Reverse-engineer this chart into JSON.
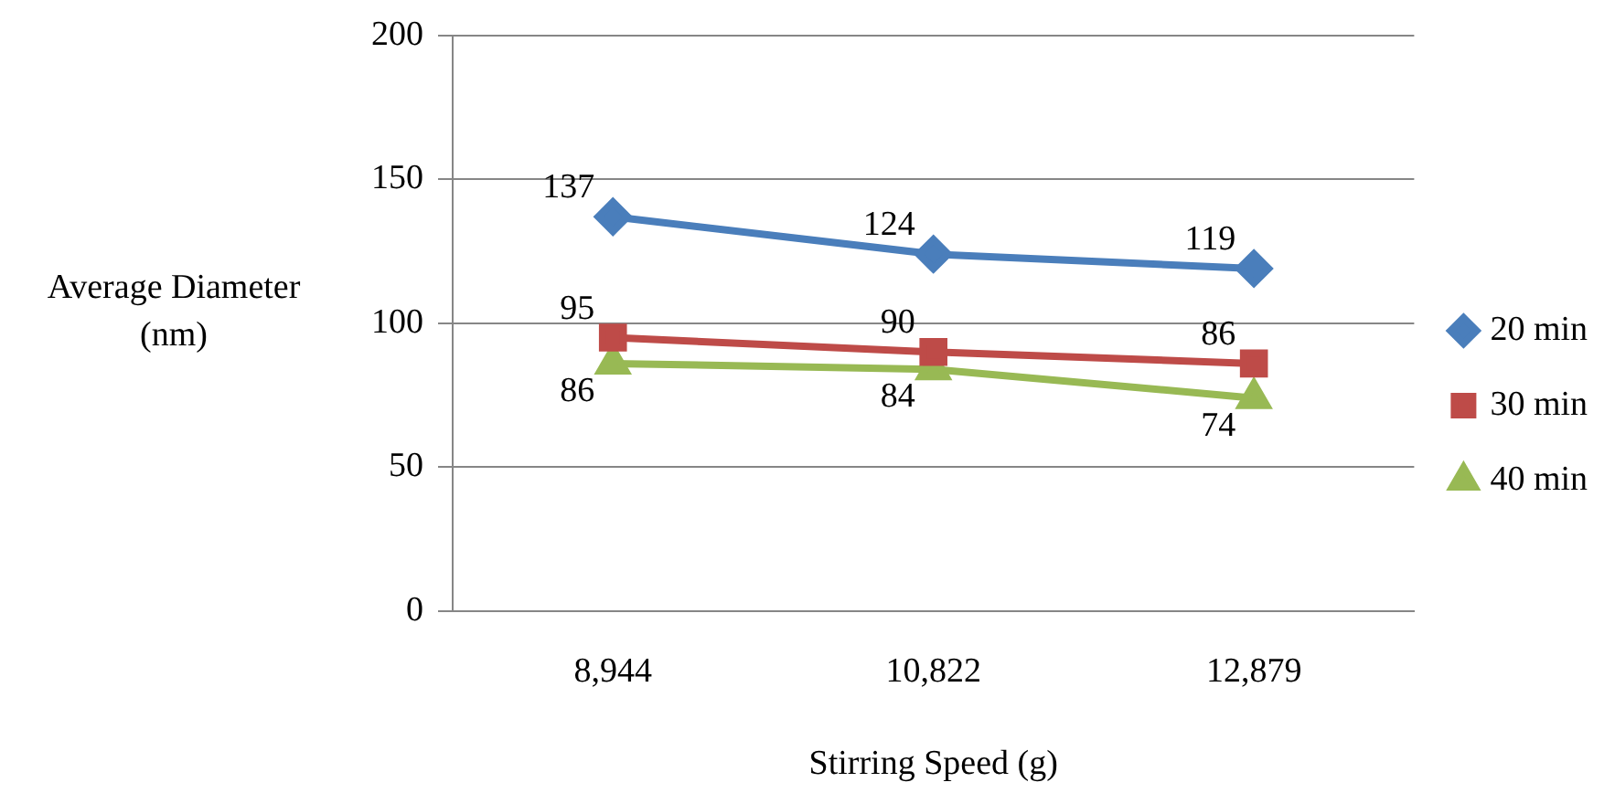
{
  "chart_data": {
    "type": "line",
    "xlabel": "Stirring Speed (g)",
    "ylabel": "Average Diameter (nm)",
    "categories": [
      "8,944",
      "10,822",
      "12,879"
    ],
    "series": [
      {
        "name": "20 min",
        "color": "#4a7ebb",
        "values": [
          137,
          124,
          119
        ],
        "marker": "diamond"
      },
      {
        "name": "30 min",
        "color": "#be4b48",
        "values": [
          95,
          90,
          86
        ],
        "marker": "square"
      },
      {
        "name": "40 min",
        "color": "#98b954",
        "values": [
          86,
          84,
          74
        ],
        "marker": "triangle"
      }
    ],
    "ylim": [
      0,
      200
    ],
    "yticks": [
      0,
      50,
      100,
      150,
      200
    ],
    "grid": "y",
    "legend": "right",
    "data_labels": true,
    "line_style": "solid"
  }
}
